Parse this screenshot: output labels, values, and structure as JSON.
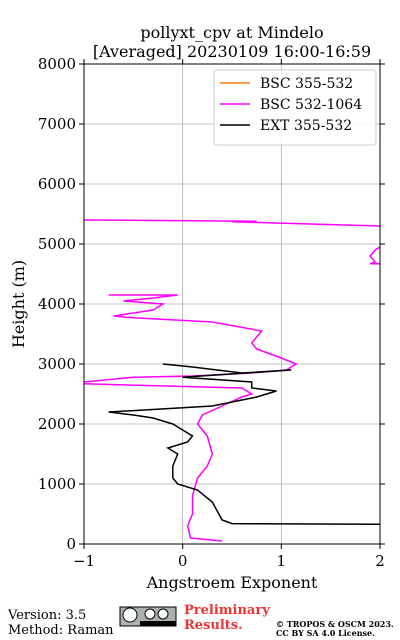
{
  "chart_data": {
    "type": "line",
    "title": [
      "pollyxt_cpv at Mindelo",
      "[Averaged] 20230109 16:00-16:59"
    ],
    "xlabel": "Angstroem Exponent",
    "ylabel": "Height (m)",
    "xlim": [
      -1,
      2
    ],
    "xticks": [
      {
        "value": -1,
        "label": "−1"
      },
      0,
      1,
      2
    ],
    "ylim": [
      0,
      8000
    ],
    "yticks": [
      0,
      1000,
      2000,
      3000,
      4000,
      5000,
      6000,
      7000,
      8000
    ],
    "grid": true,
    "legend": "upper right",
    "series": [
      {
        "name": "BSC 355-532",
        "color": "#ff7f0e",
        "x": [],
        "y": []
      },
      {
        "name": "BSC 532-1064",
        "color": "#ff00ff",
        "x": [
          -1,
          0.75,
          0.5,
          2.0,
          null,
          2.0,
          1.95,
          1.9,
          1.95,
          1.9,
          2.0,
          null,
          -0.75,
          -0.05,
          -0.3,
          -0.6,
          -0.2,
          -0.3,
          -0.7,
          -0.5,
          0.3,
          0.8,
          0.7,
          0.75,
          1.0,
          1.15,
          1.05,
          0.7,
          0.1,
          -0.5,
          -1,
          -1,
          0.6,
          0.7,
          0.6,
          0.4,
          0.2,
          0.15,
          0.25,
          0.3,
          0.25,
          0.15,
          0.1,
          0.1,
          0.05,
          0.08,
          0.4
        ],
        "y": [
          5400,
          5380,
          5370,
          5300,
          null,
          4950,
          4900,
          4800,
          4700,
          4670,
          4670,
          null,
          4150,
          4150,
          4100,
          4050,
          4000,
          3900,
          3800,
          3770,
          3700,
          3550,
          3350,
          3250,
          3100,
          3000,
          2900,
          2850,
          2800,
          2780,
          2700,
          2670,
          2600,
          2500,
          2450,
          2300,
          2150,
          2000,
          1800,
          1500,
          1300,
          1100,
          800,
          500,
          300,
          100,
          50
        ]
      },
      {
        "name": "EXT 355-532",
        "color": "#000000",
        "x": [
          2.0,
          0.5,
          0.4,
          0.3,
          0.15,
          -0.05,
          -0.1,
          -0.1,
          -0.05,
          -0.15,
          0.05,
          0.1,
          0.0,
          -0.1,
          -0.3,
          -0.5,
          -0.75,
          0.3,
          0.6,
          0.75,
          0.95,
          0.7,
          0.7,
          0.0,
          1.1,
          0.6,
          0.1,
          -0.2
        ],
        "y": [
          330,
          340,
          400,
          700,
          900,
          1000,
          1100,
          1300,
          1500,
          1600,
          1700,
          1800,
          1900,
          2000,
          2100,
          2150,
          2200,
          2300,
          2400,
          2450,
          2550,
          2600,
          2700,
          2780,
          2900,
          2850,
          2950,
          3000
        ]
      }
    ]
  },
  "footer": {
    "version": "Version: 3.5",
    "method": "Method: Raman",
    "preliminary": [
      "Preliminary",
      "Results."
    ],
    "copyright": [
      "© TROPOS & OSCM 2023.",
      "CC BY SA 4.0 License."
    ]
  }
}
